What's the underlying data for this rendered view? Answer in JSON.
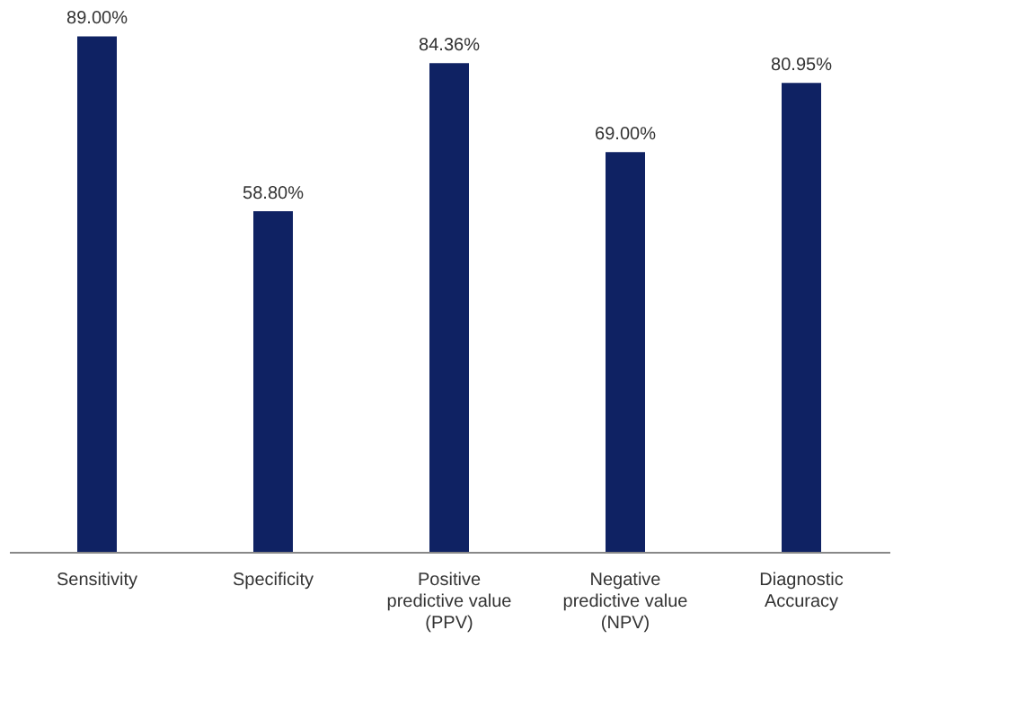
{
  "chart_data": {
    "type": "bar",
    "categories": [
      "Sensitivity",
      "Specificity",
      "Positive\npredictive value\n(PPV)",
      "Negative\npredictive value\n(NPV)",
      "Diagnostic\nAccuracy"
    ],
    "values": [
      89.0,
      58.8,
      84.36,
      69.0,
      80.95
    ],
    "value_labels": [
      "89.00%",
      "58.80%",
      "84.36%",
      "69.00%",
      "80.95%"
    ],
    "color": "#0f2263",
    "grid": false
  }
}
